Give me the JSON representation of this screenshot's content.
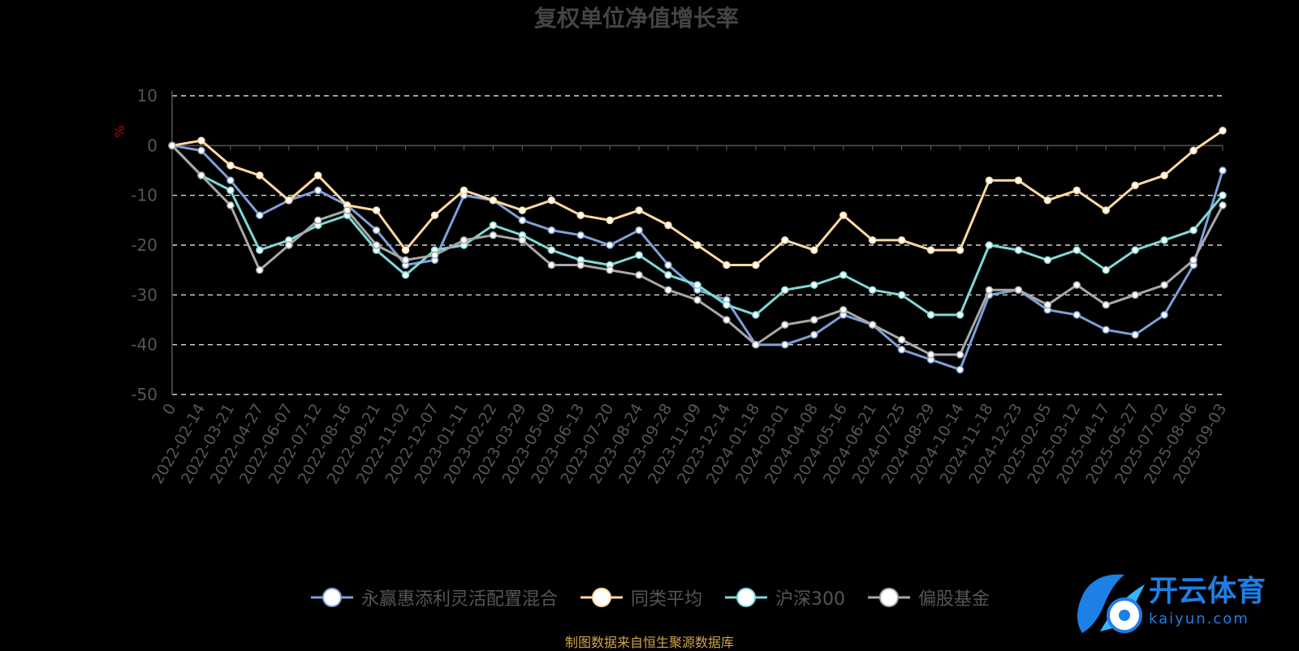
{
  "chart_data": {
    "type": "line",
    "title": "复权单位净值增长率",
    "ylabel": "%",
    "xlabel": "",
    "ylim": [
      -50,
      10
    ],
    "yticks": [
      10,
      0,
      -10,
      -20,
      -30,
      -40,
      -50
    ],
    "grid": true,
    "legend_position": "bottom",
    "x_ticks": [
      "0",
      "2022-02-14",
      "2022-03-21",
      "2022-04-27",
      "2022-06-07",
      "2022-07-12",
      "2022-08-16",
      "2022-09-21",
      "2022-11-02",
      "2022-12-07",
      "2023-01-11",
      "2023-02-22",
      "2023-03-29",
      "2023-05-09",
      "2023-06-13",
      "2023-07-20",
      "2023-08-24",
      "2023-09-28",
      "2023-11-09",
      "2023-12-14",
      "2024-01-18",
      "2024-03-01",
      "2024-04-08",
      "2024-05-16",
      "2024-06-21",
      "2024-07-25",
      "2024-08-29",
      "2024-10-14",
      "2024-11-18",
      "2024-12-23",
      "2025-02-05",
      "2025-03-12",
      "2025-04-17",
      "2025-05-27",
      "2025-07-02",
      "2025-08-06",
      "2025-09-03"
    ],
    "series": [
      {
        "name": "永赢惠添利灵活配置混合",
        "color": "#7f9fd6",
        "values": [
          0,
          -1,
          -7,
          -14,
          -11,
          -9,
          -12,
          -17,
          -24,
          -23,
          -10,
          -11,
          -15,
          -17,
          -18,
          -20,
          -17,
          -24,
          -29,
          -31,
          -40,
          -40,
          -38,
          -34,
          -36,
          -41,
          -43,
          -45,
          -30,
          -29,
          -33,
          -34,
          -37,
          -38,
          -34,
          -24,
          -5
        ]
      },
      {
        "name": "同类平均",
        "color": "#ffd9a0",
        "values": [
          0,
          1,
          -4,
          -6,
          -11,
          -6,
          -12,
          -13,
          -21,
          -14,
          -9,
          -11,
          -13,
          -11,
          -14,
          -15,
          -13,
          -16,
          -20,
          -24,
          -24,
          -19,
          -21,
          -14,
          -19,
          -19,
          -21,
          -21,
          -7,
          -7,
          -11,
          -9,
          -13,
          -8,
          -6,
          -1,
          3
        ]
      },
      {
        "name": "沪深300",
        "color": "#7fd8d8",
        "values": [
          0,
          -6,
          -9,
          -21,
          -19,
          -16,
          -14,
          -21,
          -26,
          -21,
          -20,
          -16,
          -18,
          -21,
          -23,
          -24,
          -22,
          -26,
          -28,
          -32,
          -34,
          -29,
          -28,
          -26,
          -29,
          -30,
          -34,
          -34,
          -20,
          -21,
          -23,
          -21,
          -25,
          -21,
          -19,
          -17,
          -10
        ]
      },
      {
        "name": "偏股基金",
        "color": "#a8a8a8",
        "values": [
          0,
          -6,
          -12,
          -25,
          -20,
          -15,
          -13,
          -20,
          -23,
          -22,
          -19,
          -18,
          -19,
          -24,
          -24,
          -25,
          -26,
          -29,
          -31,
          -35,
          -40,
          -36,
          -35,
          -33,
          -36,
          -39,
          -42,
          -42,
          -29,
          -29,
          -32,
          -28,
          -32,
          -30,
          -28,
          -23,
          -12
        ]
      }
    ]
  },
  "source_note": "制图数据来自恒生聚源数据库",
  "watermark": {
    "text_cn": "开云体育",
    "text_en": "kaiyun.com"
  }
}
